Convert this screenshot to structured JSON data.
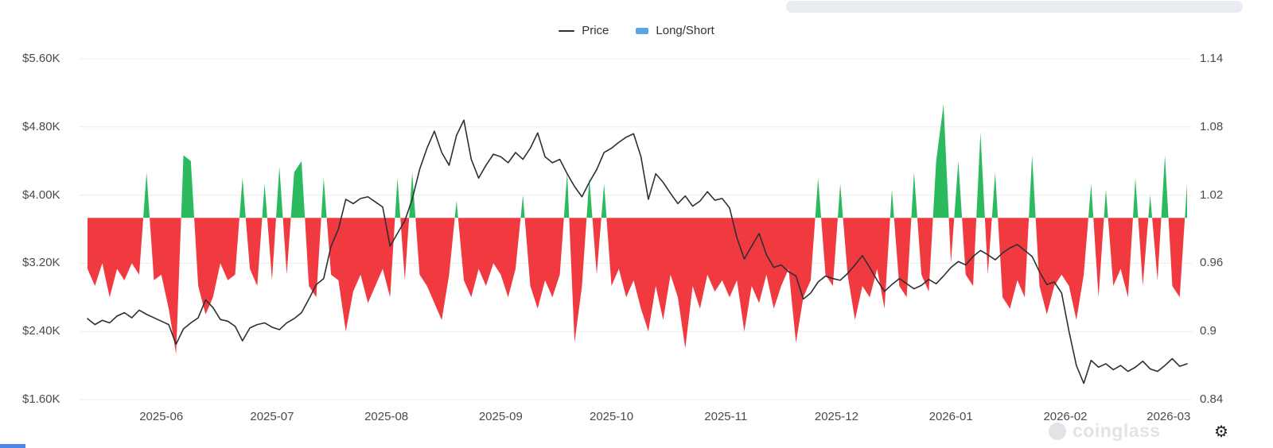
{
  "watermark": {
    "text": "coinglass"
  },
  "accents": {
    "bottom_bar": "#4a86e8",
    "scrollbar": "#e9edf1",
    "grid": "#ececec"
  },
  "chart_data": {
    "type": "mixed",
    "title": "",
    "grid": "horizontal",
    "legend_position": "top-center",
    "x_start_date": "2025-05-12",
    "x_interval_days": 2,
    "x_ticks": [
      {
        "label": "2025-06",
        "f": 0.0671
      },
      {
        "label": "2025-07",
        "f": 0.1678
      },
      {
        "label": "2025-08",
        "f": 0.2718
      },
      {
        "label": "2025-09",
        "f": 0.3758
      },
      {
        "label": "2025-10",
        "f": 0.4765
      },
      {
        "label": "2025-11",
        "f": 0.5805
      },
      {
        "label": "2025-12",
        "f": 0.6812
      },
      {
        "label": "2026-01",
        "f": 0.7852
      },
      {
        "label": "2026-02",
        "f": 0.8893
      },
      {
        "label": "2026-03",
        "f": 0.9832
      }
    ],
    "y_left": {
      "min": 1600,
      "max": 5600,
      "tick_labels": [
        "$5.60K",
        "$4.80K",
        "$4.00K",
        "$3.20K",
        "$2.40K",
        "$1.60K"
      ]
    },
    "y_right": {
      "min": 0.84,
      "max": 1.14,
      "tick_labels": [
        "1.14",
        "1.08",
        "1.02",
        "0.96",
        "0.9",
        "0.84"
      ]
    },
    "series": [
      {
        "name": "Price",
        "type": "line",
        "axis": "left",
        "color": "#2e2f33",
        "legend_color": "#2e2f33",
        "values": [
          2550,
          2480,
          2530,
          2500,
          2580,
          2620,
          2560,
          2650,
          2600,
          2560,
          2520,
          2480,
          2250,
          2430,
          2500,
          2560,
          2770,
          2680,
          2540,
          2520,
          2460,
          2290,
          2440,
          2480,
          2500,
          2450,
          2420,
          2500,
          2550,
          2620,
          2780,
          2950,
          3020,
          3400,
          3600,
          3950,
          3900,
          3960,
          3980,
          3920,
          3860,
          3400,
          3550,
          3700,
          3950,
          4300,
          4550,
          4750,
          4500,
          4350,
          4700,
          4880,
          4420,
          4200,
          4350,
          4480,
          4450,
          4380,
          4500,
          4420,
          4550,
          4730,
          4450,
          4380,
          4420,
          4250,
          4100,
          3980,
          4150,
          4300,
          4500,
          4550,
          4620,
          4680,
          4720,
          4450,
          3950,
          4250,
          4150,
          4020,
          3900,
          3990,
          3870,
          3930,
          4040,
          3940,
          3960,
          3850,
          3500,
          3250,
          3400,
          3550,
          3300,
          3150,
          3180,
          3100,
          3050,
          2780,
          2850,
          2980,
          3050,
          3020,
          3000,
          3080,
          3180,
          3290,
          3150,
          3000,
          2870,
          2950,
          3020,
          2960,
          2900,
          2940,
          3010,
          2960,
          3050,
          3150,
          3220,
          3180,
          3280,
          3350,
          3300,
          3240,
          3320,
          3380,
          3420,
          3350,
          3280,
          3100,
          2950,
          2980,
          2850,
          2400,
          2000,
          1790,
          2060,
          1980,
          2020,
          1950,
          2000,
          1930,
          1980,
          2050,
          1960,
          1930,
          2000,
          2080,
          1990,
          2020
        ]
      },
      {
        "name": "Long/Short",
        "type": "diverging_area",
        "axis": "right",
        "baseline": 1.0,
        "color_above": "#2cba5f",
        "color_below": "#f03a3f",
        "legend_color": "#57a7e8",
        "values": [
          0.955,
          0.94,
          0.96,
          0.93,
          0.955,
          0.945,
          0.96,
          0.95,
          1.04,
          0.945,
          0.95,
          0.92,
          0.88,
          1.055,
          1.05,
          0.94,
          0.915,
          0.93,
          0.96,
          0.945,
          0.95,
          1.035,
          0.955,
          0.94,
          1.03,
          0.945,
          1.045,
          0.95,
          1.04,
          1.05,
          0.94,
          0.93,
          1.035,
          0.95,
          0.945,
          0.9,
          0.935,
          0.95,
          0.925,
          0.94,
          0.955,
          0.93,
          1.035,
          0.945,
          1.04,
          0.95,
          0.94,
          0.925,
          0.91,
          0.95,
          1.015,
          0.945,
          0.93,
          0.955,
          0.94,
          0.96,
          0.95,
          0.93,
          0.955,
          1.02,
          0.94,
          0.92,
          0.945,
          0.93,
          0.95,
          1.04,
          0.89,
          0.94,
          1.035,
          0.95,
          1.03,
          0.94,
          0.955,
          0.93,
          0.945,
          0.92,
          0.9,
          0.94,
          0.91,
          0.95,
          0.93,
          0.885,
          0.94,
          0.92,
          0.95,
          0.935,
          0.945,
          0.93,
          0.945,
          0.9,
          0.94,
          0.925,
          0.95,
          0.92,
          0.94,
          0.955,
          0.89,
          0.93,
          0.945,
          1.035,
          0.95,
          0.94,
          1.03,
          0.95,
          0.91,
          0.94,
          0.93,
          0.955,
          0.92,
          1.025,
          0.94,
          0.93,
          1.04,
          0.95,
          0.935,
          1.05,
          1.1,
          0.96,
          1.05,
          0.95,
          0.94,
          1.075,
          0.95,
          1.04,
          0.93,
          0.92,
          0.945,
          0.93,
          1.055,
          0.94,
          0.915,
          0.94,
          0.95,
          0.94,
          0.91,
          0.95,
          1.03,
          0.93,
          1.025,
          0.94,
          0.955,
          0.93,
          1.035,
          0.94,
          1.02,
          0.945,
          1.055,
          0.94,
          0.93,
          1.03
        ]
      }
    ]
  }
}
